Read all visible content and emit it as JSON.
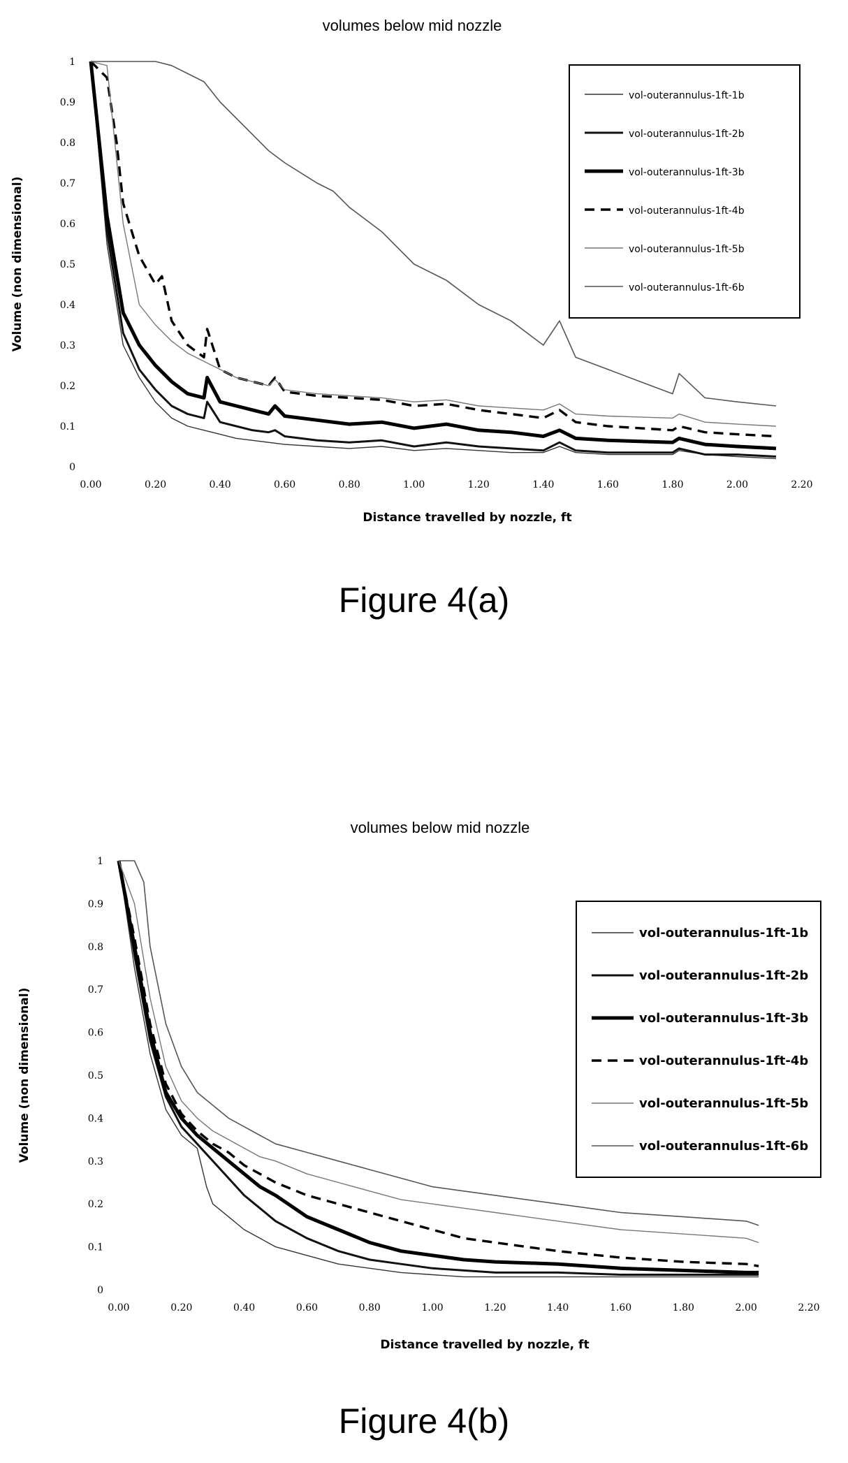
{
  "chart_data": [
    {
      "type": "line",
      "title": "volumes below mid nozzle",
      "xlabel": "Distance travelled by nozzle, ft",
      "ylabel": "Volume (non dimensional)",
      "caption": "Figure 4(a)",
      "xlim": [
        0,
        2.2
      ],
      "ylim": [
        0,
        1
      ],
      "x_ticks": [
        "0.00",
        "0.20",
        "0.40",
        "0.60",
        "0.80",
        "1.00",
        "1.20",
        "1.40",
        "1.60",
        "1.80",
        "2.00",
        "2.20"
      ],
      "y_ticks": [
        "0",
        "0.1",
        "0.2",
        "0.3",
        "0.4",
        "0.5",
        "0.6",
        "0.7",
        "0.8",
        "0.9",
        "1"
      ],
      "grid": false,
      "legend_position": "top-right",
      "series": [
        {
          "name": "vol-outerannulus-1ft-1b",
          "x": [
            0.0,
            0.05,
            0.1,
            0.15,
            0.2,
            0.25,
            0.3,
            0.35,
            0.4,
            0.45,
            0.5,
            0.55,
            0.6,
            0.7,
            0.8,
            0.9,
            1.0,
            1.1,
            1.2,
            1.3,
            1.4,
            1.45,
            1.5,
            1.6,
            1.8,
            1.82,
            1.9,
            2.0,
            2.12
          ],
          "y": [
            1.0,
            0.55,
            0.3,
            0.22,
            0.16,
            0.12,
            0.1,
            0.09,
            0.08,
            0.07,
            0.065,
            0.06,
            0.055,
            0.05,
            0.045,
            0.05,
            0.04,
            0.045,
            0.04,
            0.035,
            0.035,
            0.05,
            0.035,
            0.03,
            0.03,
            0.04,
            0.03,
            0.025,
            0.02
          ]
        },
        {
          "name": "vol-outerannulus-1ft-2b",
          "x": [
            0.0,
            0.05,
            0.1,
            0.15,
            0.2,
            0.25,
            0.3,
            0.35,
            0.36,
            0.4,
            0.45,
            0.5,
            0.55,
            0.57,
            0.6,
            0.7,
            0.8,
            0.9,
            1.0,
            1.1,
            1.2,
            1.3,
            1.4,
            1.45,
            1.5,
            1.6,
            1.8,
            1.82,
            1.9,
            2.0,
            2.12
          ],
          "y": [
            1.0,
            0.58,
            0.33,
            0.24,
            0.19,
            0.15,
            0.13,
            0.12,
            0.16,
            0.11,
            0.1,
            0.09,
            0.085,
            0.09,
            0.075,
            0.065,
            0.06,
            0.065,
            0.05,
            0.06,
            0.05,
            0.045,
            0.04,
            0.06,
            0.04,
            0.035,
            0.035,
            0.045,
            0.03,
            0.03,
            0.025
          ]
        },
        {
          "name": "vol-outerannulus-1ft-3b",
          "x": [
            0.0,
            0.05,
            0.1,
            0.15,
            0.2,
            0.25,
            0.3,
            0.35,
            0.36,
            0.4,
            0.45,
            0.5,
            0.55,
            0.57,
            0.6,
            0.7,
            0.8,
            0.9,
            1.0,
            1.1,
            1.2,
            1.3,
            1.4,
            1.45,
            1.5,
            1.6,
            1.8,
            1.82,
            1.9,
            2.0,
            2.12
          ],
          "y": [
            1.0,
            0.62,
            0.38,
            0.3,
            0.25,
            0.21,
            0.18,
            0.17,
            0.22,
            0.16,
            0.15,
            0.14,
            0.13,
            0.15,
            0.125,
            0.115,
            0.105,
            0.11,
            0.095,
            0.105,
            0.09,
            0.085,
            0.075,
            0.09,
            0.07,
            0.065,
            0.06,
            0.07,
            0.055,
            0.05,
            0.045
          ]
        },
        {
          "name": "vol-outerannulus-1ft-4b",
          "x": [
            0.0,
            0.05,
            0.08,
            0.1,
            0.15,
            0.2,
            0.22,
            0.25,
            0.3,
            0.35,
            0.36,
            0.4,
            0.45,
            0.5,
            0.55,
            0.57,
            0.6,
            0.7,
            0.8,
            0.9,
            1.0,
            1.1,
            1.2,
            1.3,
            1.4,
            1.45,
            1.5,
            1.6,
            1.8,
            1.82,
            1.9,
            2.0,
            2.12
          ],
          "y": [
            1.0,
            0.96,
            0.8,
            0.65,
            0.52,
            0.45,
            0.47,
            0.36,
            0.3,
            0.27,
            0.34,
            0.24,
            0.22,
            0.21,
            0.2,
            0.22,
            0.185,
            0.175,
            0.17,
            0.165,
            0.15,
            0.155,
            0.14,
            0.13,
            0.12,
            0.14,
            0.11,
            0.1,
            0.09,
            0.1,
            0.085,
            0.08,
            0.075
          ]
        },
        {
          "name": "vol-outerannulus-1ft-5b",
          "x": [
            0.0,
            0.05,
            0.1,
            0.15,
            0.2,
            0.25,
            0.3,
            0.35,
            0.4,
            0.45,
            0.5,
            0.55,
            0.57,
            0.6,
            0.7,
            0.8,
            0.9,
            1.0,
            1.1,
            1.2,
            1.3,
            1.4,
            1.45,
            1.5,
            1.6,
            1.8,
            1.82,
            1.9,
            2.0,
            2.12
          ],
          "y": [
            1.0,
            0.99,
            0.6,
            0.4,
            0.35,
            0.31,
            0.28,
            0.26,
            0.24,
            0.22,
            0.21,
            0.2,
            0.215,
            0.19,
            0.18,
            0.175,
            0.17,
            0.16,
            0.165,
            0.15,
            0.145,
            0.14,
            0.155,
            0.13,
            0.125,
            0.12,
            0.13,
            0.11,
            0.105,
            0.1
          ]
        },
        {
          "name": "vol-outerannulus-1ft-6b",
          "x": [
            0.0,
            0.1,
            0.2,
            0.25,
            0.3,
            0.35,
            0.4,
            0.5,
            0.55,
            0.6,
            0.7,
            0.75,
            0.8,
            0.9,
            1.0,
            1.1,
            1.2,
            1.3,
            1.4,
            1.45,
            1.5,
            1.6,
            1.7,
            1.8,
            1.82,
            1.9,
            2.0,
            2.12
          ],
          "y": [
            1.0,
            1.0,
            1.0,
            0.99,
            0.97,
            0.95,
            0.9,
            0.82,
            0.78,
            0.75,
            0.7,
            0.68,
            0.64,
            0.58,
            0.5,
            0.46,
            0.4,
            0.36,
            0.3,
            0.36,
            0.27,
            0.24,
            0.21,
            0.18,
            0.23,
            0.17,
            0.16,
            0.15
          ]
        }
      ]
    },
    {
      "type": "line",
      "title": "volumes below mid nozzle",
      "xlabel": "Distance travelled by nozzle, ft",
      "ylabel": "Volume (non dimensional)",
      "caption": "Figure 4(b)",
      "xlim": [
        0,
        2.2
      ],
      "ylim": [
        0,
        1
      ],
      "x_ticks": [
        "0.00",
        "0.20",
        "0.40",
        "0.60",
        "0.80",
        "1.00",
        "1.20",
        "1.40",
        "1.60",
        "1.80",
        "2.00",
        "2.20"
      ],
      "y_ticks": [
        "0",
        "0.1",
        "0.2",
        "0.3",
        "0.4",
        "0.5",
        "0.6",
        "0.7",
        "0.8",
        "0.9",
        "1"
      ],
      "grid": false,
      "legend_position": "top-right",
      "series": [
        {
          "name": "vol-outerannulus-1ft-1b",
          "x": [
            0.0,
            0.05,
            0.1,
            0.15,
            0.2,
            0.25,
            0.28,
            0.3,
            0.35,
            0.4,
            0.45,
            0.5,
            0.6,
            0.7,
            0.8,
            0.9,
            1.0,
            1.1,
            1.2,
            1.4,
            1.6,
            1.8,
            2.0,
            2.04
          ],
          "y": [
            1.0,
            0.75,
            0.55,
            0.42,
            0.36,
            0.33,
            0.24,
            0.2,
            0.17,
            0.14,
            0.12,
            0.1,
            0.08,
            0.06,
            0.05,
            0.04,
            0.035,
            0.03,
            0.03,
            0.03,
            0.03,
            0.03,
            0.03,
            0.03
          ]
        },
        {
          "name": "vol-outerannulus-1ft-2b",
          "x": [
            0.0,
            0.05,
            0.1,
            0.15,
            0.2,
            0.25,
            0.3,
            0.35,
            0.4,
            0.45,
            0.5,
            0.6,
            0.7,
            0.8,
            0.9,
            1.0,
            1.1,
            1.2,
            1.4,
            1.6,
            1.8,
            2.0,
            2.04
          ],
          "y": [
            1.0,
            0.78,
            0.58,
            0.45,
            0.38,
            0.34,
            0.3,
            0.26,
            0.22,
            0.19,
            0.16,
            0.12,
            0.09,
            0.07,
            0.06,
            0.05,
            0.045,
            0.04,
            0.04,
            0.035,
            0.035,
            0.035,
            0.035
          ]
        },
        {
          "name": "vol-outerannulus-1ft-3b",
          "x": [
            0.0,
            0.05,
            0.1,
            0.15,
            0.2,
            0.25,
            0.3,
            0.35,
            0.4,
            0.45,
            0.5,
            0.6,
            0.7,
            0.8,
            0.9,
            1.0,
            1.1,
            1.2,
            1.4,
            1.6,
            1.8,
            2.0,
            2.04
          ],
          "y": [
            1.0,
            0.8,
            0.6,
            0.46,
            0.4,
            0.36,
            0.33,
            0.3,
            0.27,
            0.24,
            0.22,
            0.17,
            0.14,
            0.11,
            0.09,
            0.08,
            0.07,
            0.065,
            0.06,
            0.05,
            0.045,
            0.04,
            0.04
          ]
        },
        {
          "name": "vol-outerannulus-1ft-4b",
          "x": [
            0.0,
            0.05,
            0.1,
            0.15,
            0.2,
            0.25,
            0.3,
            0.35,
            0.4,
            0.45,
            0.5,
            0.6,
            0.7,
            0.8,
            0.9,
            1.0,
            1.1,
            1.2,
            1.4,
            1.6,
            1.8,
            2.0,
            2.04
          ],
          "y": [
            1.0,
            0.82,
            0.62,
            0.48,
            0.41,
            0.37,
            0.34,
            0.32,
            0.29,
            0.27,
            0.25,
            0.22,
            0.2,
            0.18,
            0.16,
            0.14,
            0.12,
            0.11,
            0.09,
            0.075,
            0.065,
            0.06,
            0.055
          ]
        },
        {
          "name": "vol-outerannulus-1ft-5b",
          "x": [
            0.0,
            0.05,
            0.1,
            0.15,
            0.2,
            0.25,
            0.3,
            0.35,
            0.4,
            0.45,
            0.5,
            0.6,
            0.7,
            0.8,
            0.9,
            1.0,
            1.1,
            1.2,
            1.4,
            1.6,
            1.8,
            2.0,
            2.04
          ],
          "y": [
            1.0,
            0.9,
            0.68,
            0.52,
            0.44,
            0.4,
            0.37,
            0.35,
            0.33,
            0.31,
            0.3,
            0.27,
            0.25,
            0.23,
            0.21,
            0.2,
            0.19,
            0.18,
            0.16,
            0.14,
            0.13,
            0.12,
            0.11
          ]
        },
        {
          "name": "vol-outerannulus-1ft-6b",
          "x": [
            0.0,
            0.05,
            0.08,
            0.1,
            0.15,
            0.2,
            0.25,
            0.3,
            0.35,
            0.4,
            0.45,
            0.5,
            0.6,
            0.7,
            0.8,
            0.9,
            1.0,
            1.1,
            1.2,
            1.4,
            1.6,
            1.8,
            2.0,
            2.04
          ],
          "y": [
            1.0,
            1.0,
            0.95,
            0.8,
            0.62,
            0.52,
            0.46,
            0.43,
            0.4,
            0.38,
            0.36,
            0.34,
            0.32,
            0.3,
            0.28,
            0.26,
            0.24,
            0.23,
            0.22,
            0.2,
            0.18,
            0.17,
            0.16,
            0.15
          ]
        }
      ]
    }
  ]
}
